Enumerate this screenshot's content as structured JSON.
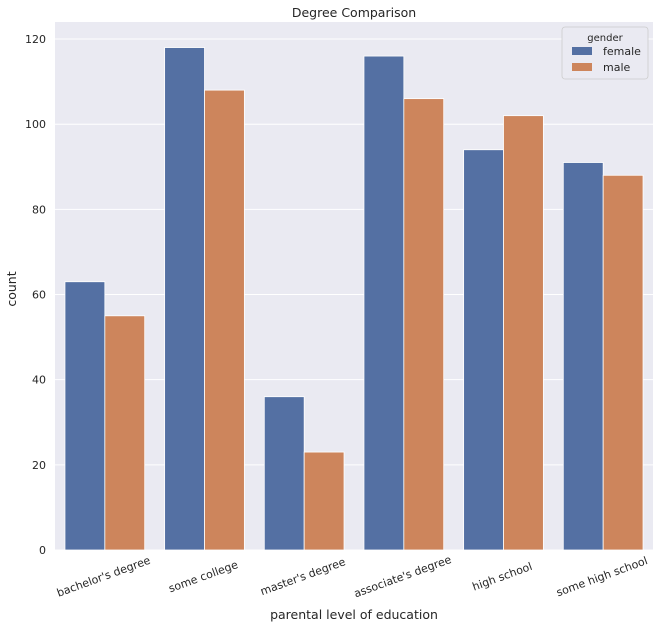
{
  "chart_data": {
    "type": "bar",
    "title": "Degree Comparison",
    "xlabel": "parental level of education",
    "ylabel": "count",
    "categories": [
      "bachelor's degree",
      "some college",
      "master's degree",
      "associate's degree",
      "high school",
      "some high school"
    ],
    "series": [
      {
        "name": "female",
        "color": "#5470a3",
        "values": [
          63,
          118,
          36,
          116,
          94,
          91
        ]
      },
      {
        "name": "male",
        "color": "#cd855c",
        "values": [
          55,
          108,
          23,
          106,
          102,
          88
        ]
      }
    ],
    "ylim": [
      0,
      124
    ],
    "yticks": [
      0,
      20,
      40,
      60,
      80,
      100,
      120
    ],
    "grid": true,
    "legend": {
      "title": "gender",
      "position": "top-right"
    }
  }
}
